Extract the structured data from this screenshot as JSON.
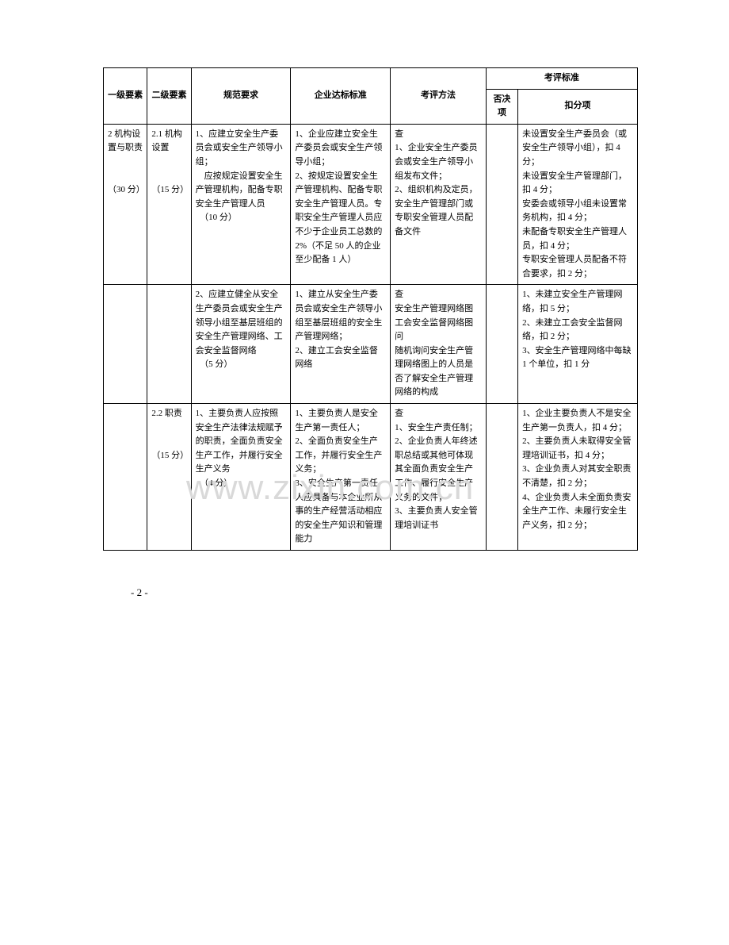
{
  "table": {
    "headers": {
      "level1": "一级要素",
      "level2": "二级要素",
      "spec": "规范要求",
      "standard": "企业达标标准",
      "method": "考评方法",
      "criteria": "考评标准",
      "veto": "否决项",
      "deduct": "扣分项"
    },
    "columns": {
      "widths": [
        55,
        55,
        125,
        125,
        120,
        40,
        150
      ]
    },
    "rows": [
      {
        "level1": "2 机构设置与职责\n\n（30 分）",
        "level2": "2.1 机构设置\n\n（15 分）",
        "spec": "1、应建立安全生产委员会或安全生产领导小组；\n　应按规定设置安全生产管理机构，配备专职安全生产管理人员\n　（10 分）",
        "standard": "1、企业应建立安全生产委员会或安全生产领导小组；\n2、按规定设置安全生产管理机构、配备专职安全生产管理人员。专职安全生产管理人员应不少于企业员工总数的 2%（不足 50 人的企业至少配备 1 人）",
        "method": "查\n1、企业安全生产委员会或安全生产领导小组发布文件；\n2、组织机构及定员，安全生产管理部门或专职安全管理人员配备文件",
        "veto": "",
        "deduct": "未设置安全生产委员会（或安全生产领导小组），扣 4 分；\n未设置安全生产管理部门，扣 4 分；\n安委会或领导小组未设置常务机构，扣 4 分；\n未配备专职安全生产管理人员，扣 4 分；\n专职安全管理人员配备不符合要求，扣 2 分；"
      },
      {
        "level1": "",
        "level2": "",
        "spec": "2、应建立健全从安全生产委员会或安全生产领导小组至基层班组的安全生产管理网络、工会安全监督网络\n　（5 分）",
        "standard": "1、建立从安全生产委员会或安全生产领导小组至基层班组的安全生产管理网络；\n2、建立工会安全监督网络",
        "method": "查\n安全生产管理网络图\n工会安全监督网络图\n问\n随机询问安全生产管理网络图上的人员是否了解安全生产管理网络的构成",
        "veto": "",
        "deduct": "1、未建立安全生产管理网络，扣 5 分；\n2、未建立工会安全监督网络，扣 2 分；\n3、安全生产管理网络中每缺 1 个单位，扣 1 分"
      },
      {
        "level1": "",
        "level2": "2.2 职责\n\n（15 分）",
        "spec": "1、主要负责人应按照安全生产法律法规赋予的职责，全面负责安全生产工作，并履行安全生产义务\n　（4 分）",
        "standard": "1、主要负责人是安全生产第一责任人；\n2、全面负责安全生产工作，并履行安全生产义务；\n3、安全生产第一责任人应具备与本企业所从事的生产经营活动相应的安全生产知识和管理能力",
        "method": "查\n1、安全生产责任制；\n2、企业负责人年终述职总结或其他可体现其全面负责安全生产工作、履行安全生产义务的文件；\n3、主要负责人安全管理培训证书",
        "veto": "",
        "deduct": "1、企业主要负责人不是安全生产第一负责人，扣 4 分；\n2、主要负责人未取得安全管理培训证书，扣 4 分；\n3、企业负责人对其安全职责不清楚，扣 2 分；\n4、企业负责人未全面负责安全生产工作、未履行安全生产义务，扣 2 分；"
      }
    ],
    "border_color": "#000000",
    "background_color": "#ffffff",
    "font_size": 11,
    "header_font_weight": "bold"
  },
  "page_number": "- 2 -",
  "watermark": "www.zixin.com.cn",
  "watermark_color": "#d9d9d9"
}
